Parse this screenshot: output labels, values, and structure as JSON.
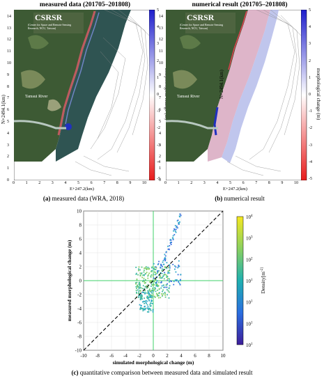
{
  "panels": [
    {
      "title": "measured data (201705–201808)",
      "caption_letter": "(a)",
      "caption_text": " measured data (WRA, 2018)",
      "logo": "CSRSR",
      "logo_sub": "(Center for Space and Remote Sensing Research, NCU, Taiwan)",
      "river_label": "Tamsui River",
      "xlabel": "E+247.2(km)",
      "ylabel": "N+2494.1(km)",
      "colorbar_label": "morphological change (m)"
    },
    {
      "title": "numerical result (201705–201808)",
      "caption_letter": "(b)",
      "caption_text": " numerical result",
      "logo": "CSRSR",
      "logo_sub": "(Center for Space and Remote Sensing Research, NCU, Taiwan)",
      "river_label": "Tamsui River",
      "xlabel": "E+247.2(km)",
      "ylabel": "N+2494.1(km)",
      "colorbar_label": "morphological change (m)"
    }
  ],
  "map_axes": {
    "x_ticks": [
      "0",
      "1",
      "2",
      "3",
      "4",
      "5",
      "6",
      "7",
      "8",
      "9",
      "10"
    ],
    "y_ticks": [
      "0",
      "1",
      "2",
      "3",
      "4",
      "5",
      "6",
      "7",
      "8",
      "9",
      "10",
      "11",
      "12",
      "13",
      "14"
    ],
    "colorbar_ticks": [
      "5",
      "4",
      "3",
      "2",
      "1",
      "0",
      "-1",
      "-2",
      "-3",
      "-4",
      "-5"
    ]
  },
  "scatter_caption_letter": "(c)",
  "scatter_caption_text": " quantitative comparison between measured data and simulated result",
  "colors": {
    "positive": "#1e1ecc",
    "negative": "#e81b1b",
    "land": "#3d5a34",
    "water": "#2f5452",
    "cross_line": "#3fd06a",
    "dashed_line": "#000000"
  },
  "chart_data": {
    "type": "scatter",
    "title": "",
    "xlabel": "simulated morphological change (m)",
    "ylabel": "measured morphological change (m)",
    "xlim": [
      -10,
      10
    ],
    "ylim": [
      -10,
      10
    ],
    "x_ticks": [
      -10,
      -8,
      -6,
      -4,
      -2,
      0,
      2,
      4,
      6,
      8,
      10
    ],
    "y_ticks": [
      -10,
      -8,
      -6,
      -4,
      -2,
      0,
      2,
      4,
      6,
      8,
      10
    ],
    "grid": true,
    "reference_line": {
      "slope": 1,
      "intercept": 0,
      "style": "dashed"
    },
    "colorbar": {
      "label": "Density[m^-2]",
      "ticks": [
        "10^1",
        "10^1",
        "10^1",
        "10^1",
        "10^2",
        "10^3",
        "10^4"
      ],
      "scale": "log"
    },
    "clusters": [
      {
        "x": [
          -2.5,
          2.5
        ],
        "y": [
          -2.5,
          2.0
        ],
        "density": "high"
      },
      {
        "x": [
          -2.0,
          0.0
        ],
        "y": [
          -4.5,
          -1.5
        ],
        "density": "medium"
      },
      {
        "x": [
          1.0,
          4.0
        ],
        "y": [
          1.5,
          9.5
        ],
        "density": "low"
      },
      {
        "x": [
          0.0,
          4.0
        ],
        "y": [
          -1.0,
          3.0
        ],
        "density": "low"
      }
    ]
  }
}
